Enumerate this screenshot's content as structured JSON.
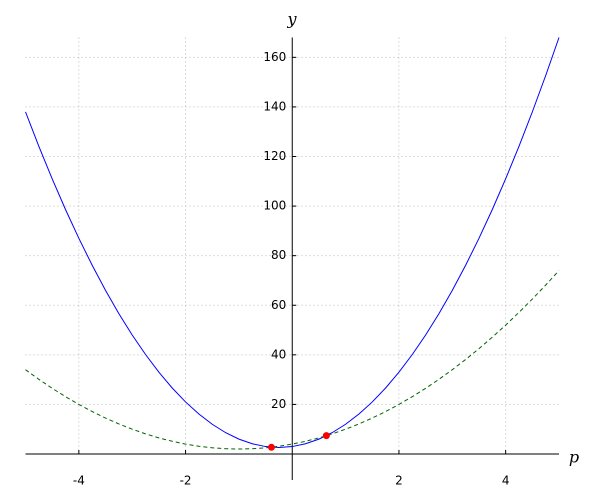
{
  "chart_data": {
    "type": "line",
    "x_label": "p",
    "y_label": "y",
    "x": [
      -5,
      -4.75,
      -4.5,
      -4.25,
      -4,
      -3.75,
      -3.5,
      -3.25,
      -3,
      -2.75,
      -2.5,
      -2.25,
      -2,
      -1.75,
      -1.5,
      -1.25,
      -1,
      -0.75,
      -0.5,
      -0.25,
      0,
      0.25,
      0.5,
      0.75,
      1,
      1.25,
      1.5,
      1.75,
      2,
      2.25,
      2.5,
      2.75,
      3,
      3.25,
      3.5,
      3.75,
      4,
      4.25,
      4.5,
      4.75,
      5
    ],
    "series": [
      {
        "color": "#0000ff",
        "dash": false,
        "values": [
          138,
          124.125,
          111,
          98.625,
          87,
          76.125,
          66,
          56.625,
          48,
          40.125,
          33,
          26.625,
          21,
          16.125,
          12,
          8.625,
          6,
          4.125,
          3,
          2.625,
          3,
          4.125,
          6,
          8.625,
          12,
          16.125,
          21,
          26.625,
          33,
          40.125,
          48,
          56.625,
          66,
          76.125,
          87,
          98.625,
          111,
          124.125,
          138,
          152.625,
          168
        ]
      },
      {
        "color": "#006400",
        "dash": true,
        "values": [
          34,
          30.125,
          26.5,
          23.125,
          20,
          17.125,
          14.5,
          12.125,
          10,
          8.125,
          6.5,
          5.125,
          4,
          3.125,
          2.5,
          2.125,
          2,
          2.125,
          2.5,
          3.125,
          4,
          5.125,
          6.5,
          8.125,
          10,
          12.125,
          14.5,
          17.125,
          20,
          23.125,
          26.5,
          30.125,
          34,
          38.125,
          42.5,
          47.125,
          52,
          57.125,
          62.5,
          68.125,
          74
        ]
      }
    ],
    "points": {
      "color": "#ff0000",
      "x": [
        -0.39,
        0.64
      ],
      "values": [
        2.7,
        7.4
      ]
    },
    "xlim": [
      -5,
      5
    ],
    "ylim": [
      0,
      168
    ],
    "xticks": [
      -4,
      -2,
      2,
      4
    ],
    "yticks": [
      20,
      40,
      60,
      80,
      100,
      120,
      140,
      160
    ],
    "grid": true
  }
}
